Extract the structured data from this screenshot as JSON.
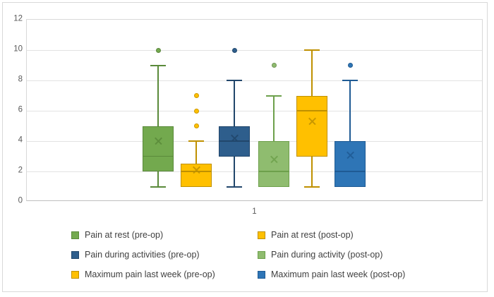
{
  "chart_data": {
    "type": "box",
    "title": "",
    "x_axis": {
      "category_labels": [
        "1"
      ]
    },
    "y_axis": {
      "min": 0,
      "max": 12,
      "ticks": [
        0,
        2,
        4,
        6,
        8,
        10,
        12
      ]
    },
    "grid": true,
    "legend_position": "bottom-two-columns (pre-op left column, post-op right column)",
    "series": [
      {
        "name": "Pain at rest (pre-op)",
        "fill": "#73A94E",
        "line": "#5A8A3A",
        "whisker_low": 1,
        "q1": 2,
        "median": 3,
        "q3": 5,
        "whisker_high": 9,
        "mean": 4.0,
        "outliers": [
          10
        ]
      },
      {
        "name": "Pain at rest (post-op)",
        "fill": "#FFC000",
        "line": "#BF9000",
        "whisker_low": 1,
        "q1": 1,
        "median": 2,
        "q3": 2.5,
        "whisker_high": 4,
        "mean": 2.1,
        "outliers": [
          5,
          6,
          7
        ]
      },
      {
        "name": "Pain during activities (pre-op)",
        "fill": "#2E5E8C",
        "line": "#21466B",
        "whisker_low": 1,
        "q1": 3,
        "median": 4,
        "q3": 5,
        "whisker_high": 8,
        "mean": 4.2,
        "outliers": [
          10
        ]
      },
      {
        "name": "Pain during activity (post-op)",
        "fill": "#8FBC6F",
        "line": "#6DA04B",
        "whisker_low": 1,
        "q1": 1,
        "median": 2,
        "q3": 4,
        "whisker_high": 7,
        "mean": 2.8,
        "outliers": [
          9
        ]
      },
      {
        "name": "Maximum pain last week (pre-op)",
        "fill": "#FFC000",
        "line": "#BF9000",
        "whisker_low": 1,
        "q1": 3,
        "median": 6,
        "q3": 7,
        "whisker_high": 10,
        "mean": 5.3,
        "outliers": []
      },
      {
        "name": "Maximum pain last week (post-op)",
        "fill": "#2E75B6",
        "line": "#1F5B94",
        "whisker_low": 1,
        "q1": 1,
        "median": 2,
        "q3": 4,
        "whisker_high": 8,
        "mean": 3.1,
        "outliers": [
          9
        ]
      }
    ]
  }
}
